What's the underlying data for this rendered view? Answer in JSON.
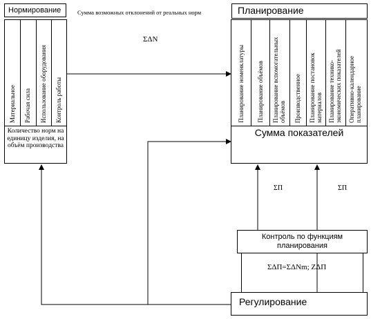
{
  "top_label": "Сумма возможных отклонений от реальных норм",
  "norming": {
    "title": "Нормирование",
    "columns": [
      "Материальное",
      "Рабочая сила",
      "Использование оборудования",
      "Контроль работы"
    ],
    "summary": "Количество норм на единицу изделия, на объём производства"
  },
  "planning": {
    "title": "Планирование",
    "columns": [
      "Планирование номенклатуры",
      "Планирование объёмов",
      "Планирование вспомогательных объёмов",
      "Производственное",
      "Планирование постановок материалов",
      "Планирование технико-экономических показателей",
      "Оперативно-календарное планирование"
    ],
    "summary": "Сумма показателей"
  },
  "arrow_labels": {
    "delta_n": "ΣΔN",
    "sum_p_left": "ΣП",
    "sum_p_right": "ΣП"
  },
  "control": {
    "title": "Контроль по функциям планирования",
    "formula": "ΣΔП=ΣΔNm; ZΔП"
  },
  "regulation": {
    "title": "Регулирование"
  }
}
